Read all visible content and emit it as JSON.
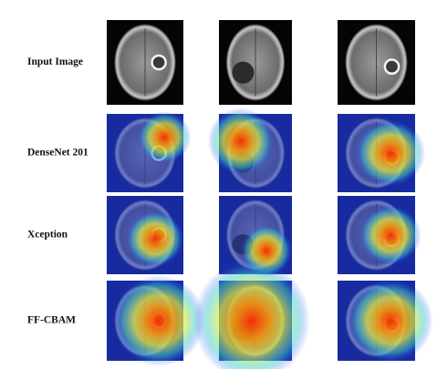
{
  "figure": {
    "rows": [
      {
        "label": "Input Image"
      },
      {
        "label": "DenseNet 201"
      },
      {
        "label": "Xception"
      },
      {
        "label": "FF-CBAM"
      }
    ]
  }
}
